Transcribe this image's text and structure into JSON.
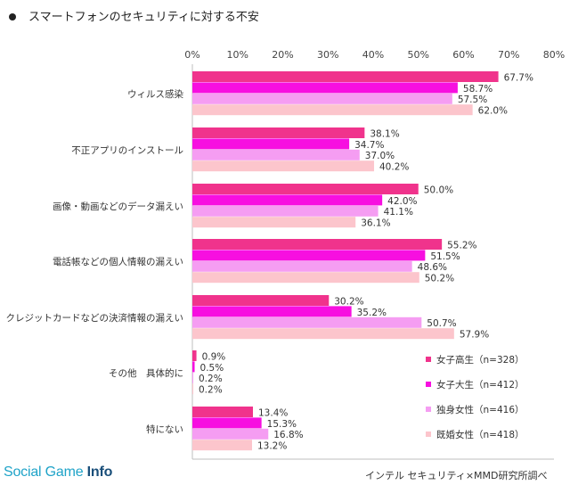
{
  "header": {
    "title": "スマートフォンのセキュリティに対する不安"
  },
  "watermark": {
    "brand_light": "Social Game ",
    "brand_bold": "Info"
  },
  "source": {
    "text": "インテル セキュリティ×MMD研究所調べ"
  },
  "chart_data": {
    "type": "bar",
    "orientation": "horizontal",
    "title": "スマートフォンのセキュリティに対する不安",
    "xlim": [
      0,
      80
    ],
    "tick_labels": [
      "0%",
      "10%",
      "20%",
      "30%",
      "40%",
      "50%",
      "60%",
      "70%",
      "80%"
    ],
    "legend_position": "bottom-right",
    "categories": [
      "ウィルス感染",
      "不正アプリのインストール",
      "画像・動画などのデータ漏えい",
      "電話帳などの個人情報の漏えい",
      "クレジットカードなどの決済情報の漏えい",
      "その他　具体的に",
      "特にない"
    ],
    "series": [
      {
        "name": "女子高生（n=328）",
        "color": "#f0338c",
        "values": [
          67.7,
          38.1,
          50.0,
          55.2,
          30.2,
          0.9,
          13.4
        ]
      },
      {
        "name": "女子大生（n=412）",
        "color": "#f70fe0",
        "values": [
          58.7,
          34.7,
          42.0,
          51.5,
          35.2,
          0.5,
          15.3
        ]
      },
      {
        "name": "独身女性（n=416）",
        "color": "#f59df2",
        "values": [
          57.5,
          37.0,
          41.1,
          48.6,
          50.7,
          0.2,
          16.8
        ]
      },
      {
        "name": "既婚女性（n=418）",
        "color": "#fcc5cc",
        "values": [
          62.0,
          40.2,
          36.1,
          50.2,
          57.9,
          0.2,
          13.2
        ]
      }
    ]
  }
}
